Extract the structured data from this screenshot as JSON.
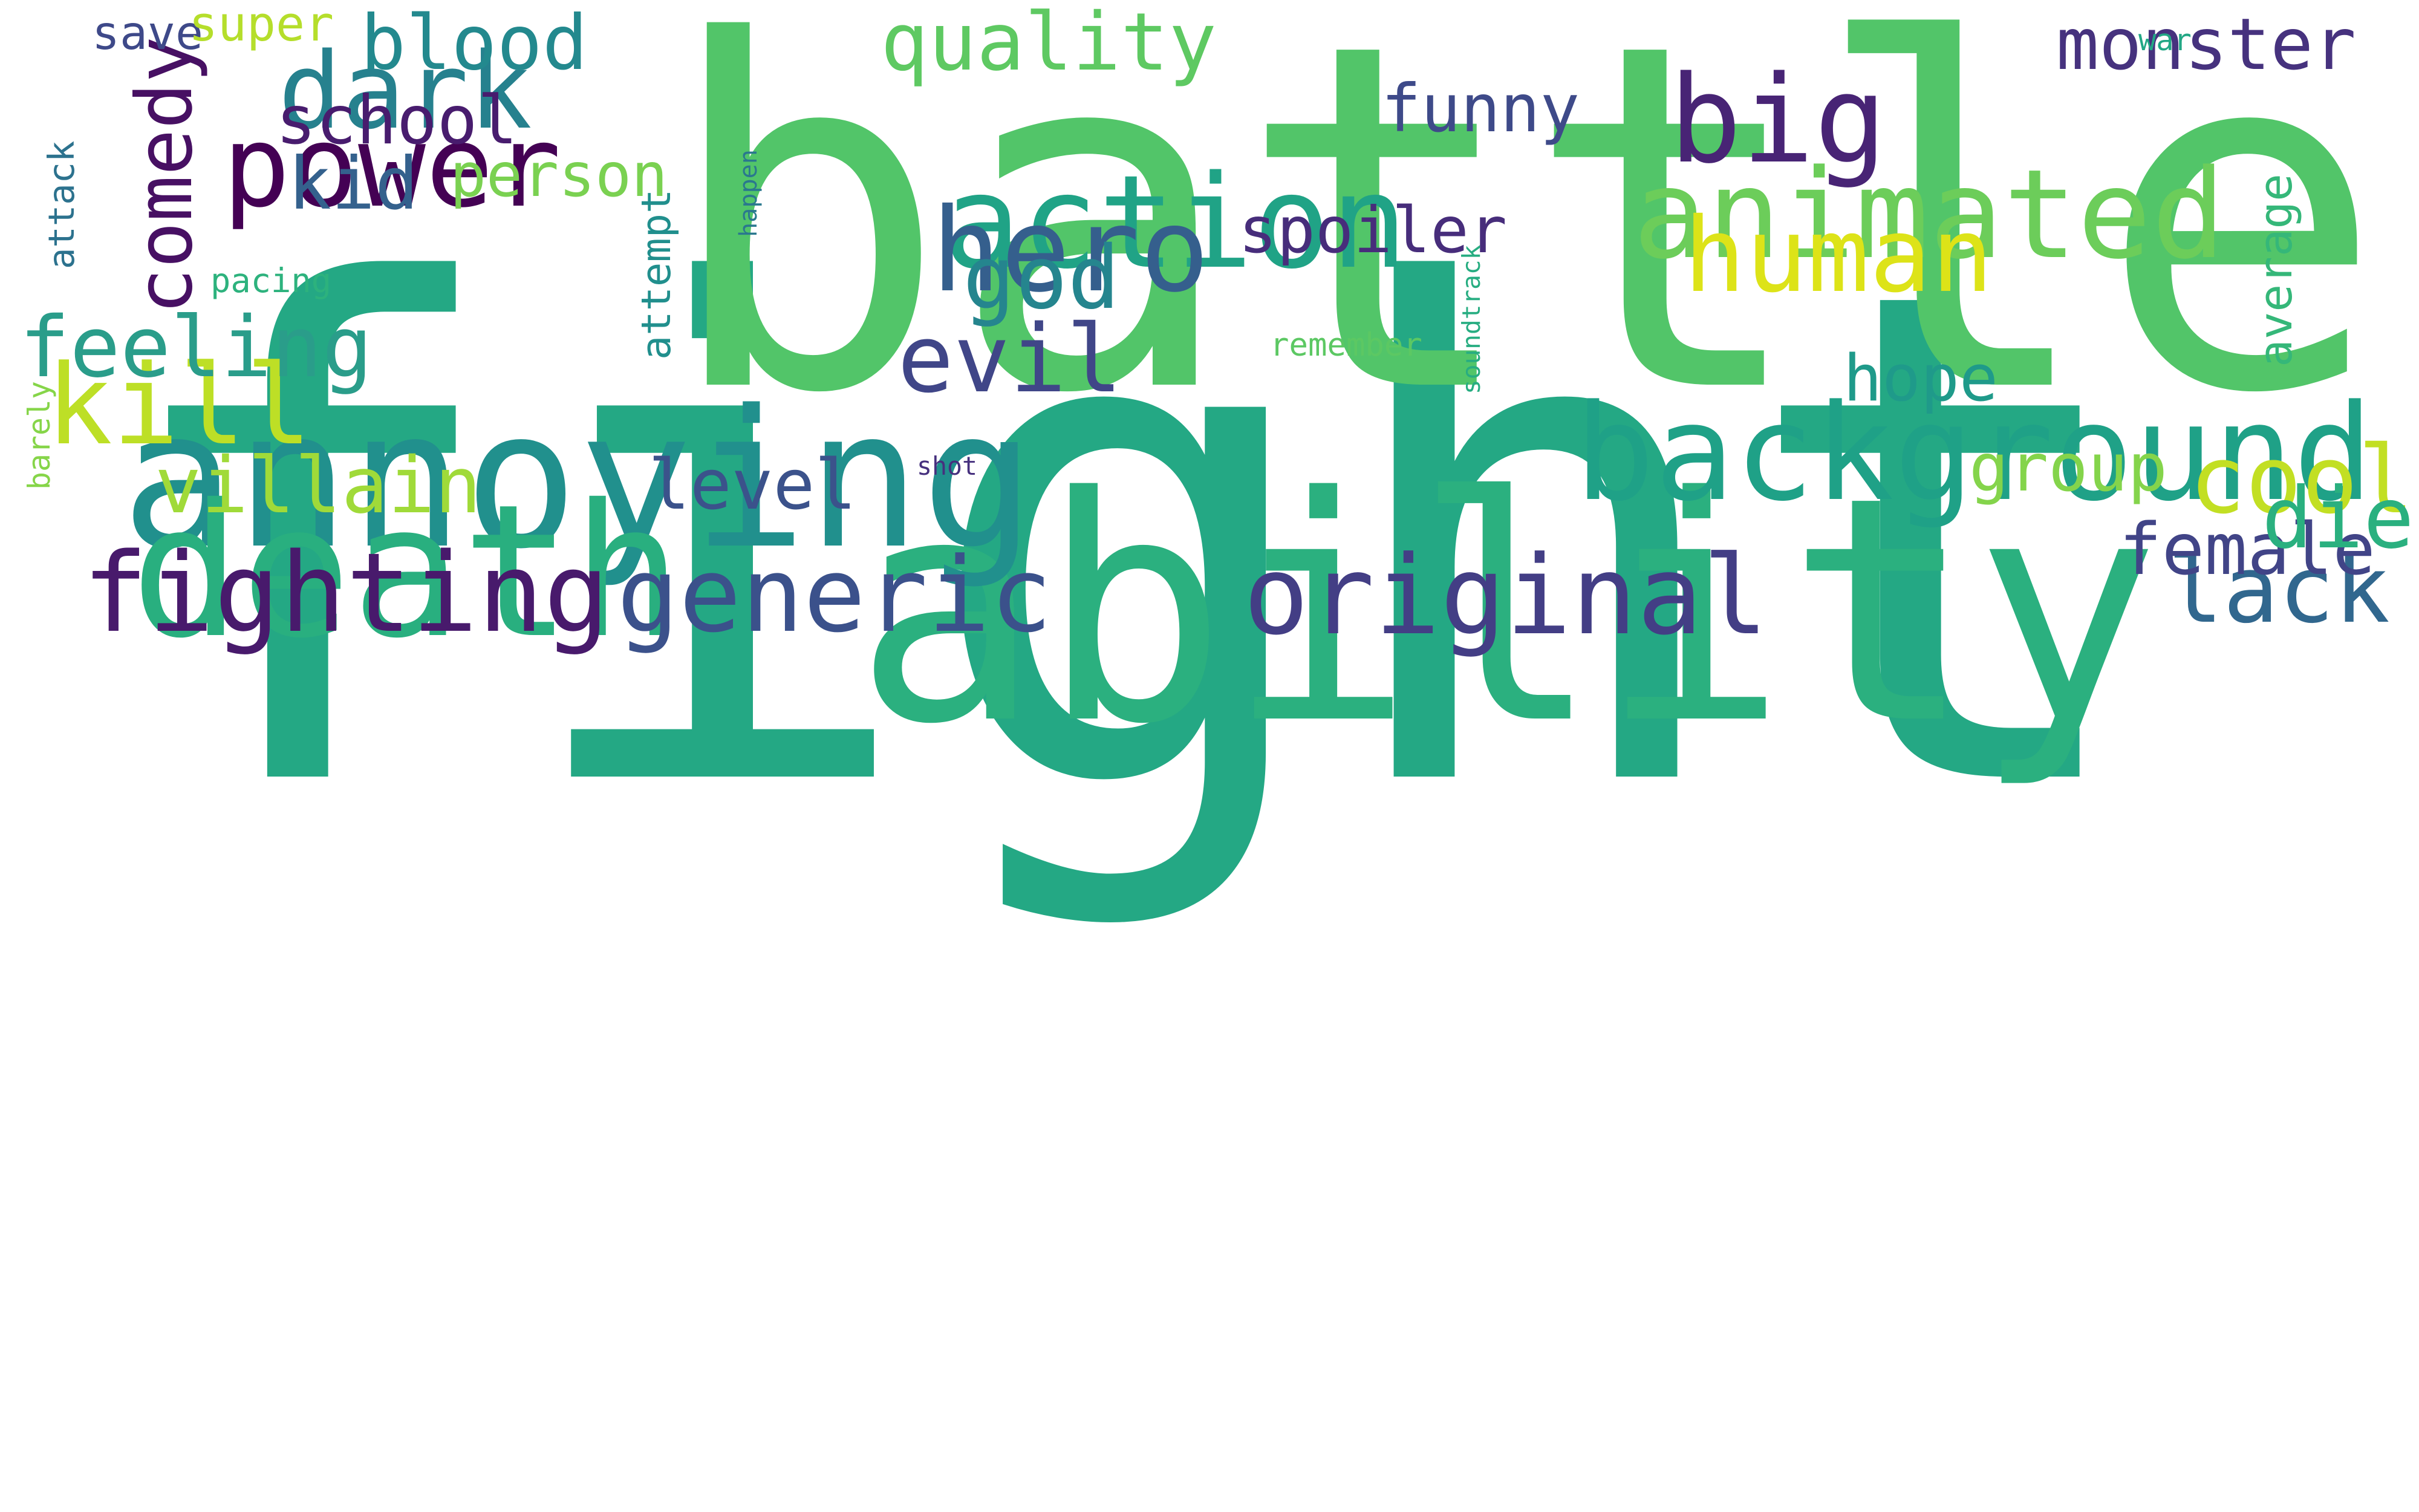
{
  "words": [
    {
      "text": "fight",
      "color": "#24a884"
    },
    {
      "text": "battle",
      "color": "#52c569"
    },
    {
      "text": "ability",
      "color": "#2bb07f"
    },
    {
      "text": "comedy",
      "color": "#471063"
    },
    {
      "text": "annoying",
      "color": "#21908d"
    },
    {
      "text": "death",
      "color": "#29af7f"
    },
    {
      "text": "background",
      "color": "#1fa187"
    },
    {
      "text": "fighting",
      "color": "#481a6c"
    },
    {
      "text": "original",
      "color": "#433e85"
    },
    {
      "text": "generic",
      "color": "#3b518b"
    },
    {
      "text": "animated",
      "color": "#6ccd5a"
    },
    {
      "text": "action",
      "color": "#20a386"
    },
    {
      "text": "average",
      "color": "#35b779"
    },
    {
      "text": "big",
      "color": "#482475"
    },
    {
      "text": "power",
      "color": "#440154"
    },
    {
      "text": "hero",
      "color": "#355f8d"
    },
    {
      "text": "attempt",
      "color": "#218f8d"
    },
    {
      "text": "human",
      "color": "#dde318"
    },
    {
      "text": "dark",
      "color": "#26818e"
    },
    {
      "text": "kill",
      "color": "#bddf26"
    },
    {
      "text": "attack",
      "color": "#2c728e"
    },
    {
      "text": "evil",
      "color": "#404688"
    },
    {
      "text": "feeling",
      "color": "#2a9d8a"
    },
    {
      "text": "god",
      "color": "#25858e"
    },
    {
      "text": "cool",
      "color": "#c2df23"
    },
    {
      "text": "lack",
      "color": "#31678e"
    },
    {
      "text": "villain",
      "color": "#a0da39"
    },
    {
      "text": "monster",
      "color": "#46327e"
    },
    {
      "text": "quality",
      "color": "#5ec962"
    },
    {
      "text": "blood",
      "color": "#23898e"
    },
    {
      "text": "school",
      "color": "#481c6e"
    },
    {
      "text": "funny",
      "color": "#3e4a89"
    },
    {
      "text": "spoiler",
      "color": "#472d7b"
    },
    {
      "text": "barely",
      "color": "#86d549"
    },
    {
      "text": "female",
      "color": "#414487"
    },
    {
      "text": "die",
      "color": "#2ab07f"
    },
    {
      "text": "level",
      "color": "#3b528b"
    },
    {
      "text": "soundtrack",
      "color": "#27ad81"
    },
    {
      "text": "happen",
      "color": "#2a788e"
    },
    {
      "text": "kid",
      "color": "#34618d"
    },
    {
      "text": "person",
      "color": "#7ad151"
    },
    {
      "text": "group",
      "color": "#84d44b"
    },
    {
      "text": "hope",
      "color": "#1f9a8a"
    },
    {
      "text": "save",
      "color": "#3e4989"
    },
    {
      "text": "super",
      "color": "#b5de2b"
    },
    {
      "text": "pacing",
      "color": "#2db27d"
    },
    {
      "text": "war",
      "color": "#22a785"
    },
    {
      "text": "remember",
      "color": "#5cc863"
    },
    {
      "text": "shot",
      "color": "#46307e"
    }
  ]
}
